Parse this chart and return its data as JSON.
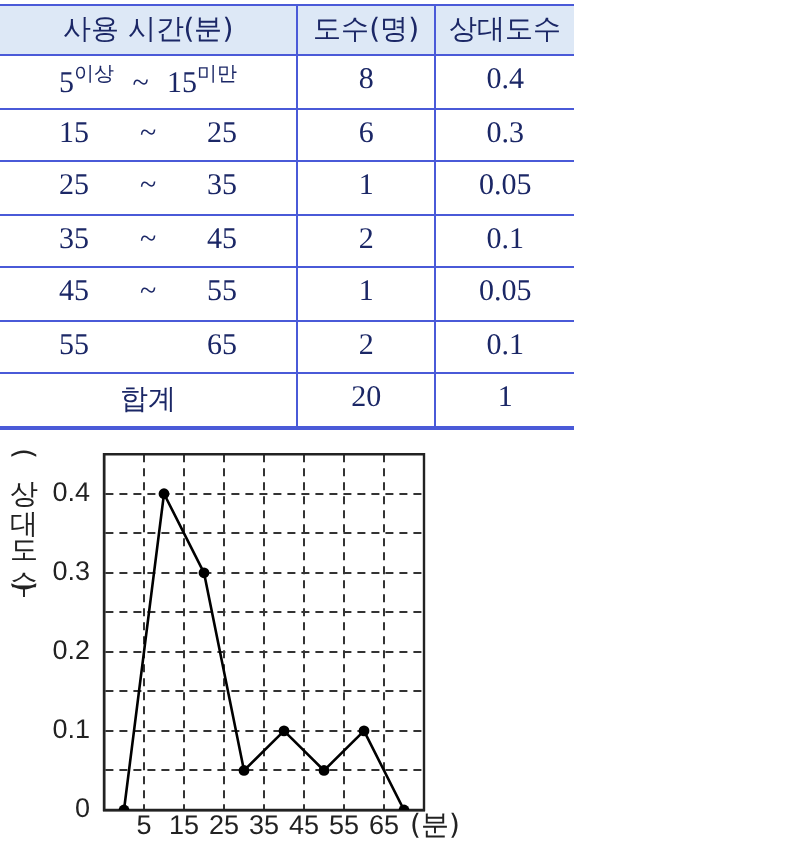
{
  "chart_data": [
    {
      "type": "other",
      "xlabel": "사용 시간(분)",
      "categories": [
        "5$^{이상}$ ~ 15$^{미만}$",
        "15 ~ 25",
        "25 ~ 35",
        "35 ~ 45",
        "45 ~ 55",
        "55 65",
        "합계"
      ],
      "series": [
        {
          "name": "도수(명)",
          "values": [
            8,
            6,
            1,
            2,
            1,
            2,
            20
          ]
        },
        {
          "name": "상대도수",
          "values": [
            0.4,
            0.3,
            0.05,
            0.1,
            0.05,
            0.1,
            1
          ]
        }
      ],
      "data_labels": true
    },
    {
      "type": "line",
      "x": [
        0,
        10,
        20,
        30,
        40,
        50,
        60,
        70
      ],
      "values": [
        0,
        0.4,
        0.3,
        0.05,
        0.1,
        0.05,
        0.1,
        0
      ],
      "color": "#000000",
      "xlim": [
        -5,
        75
      ],
      "xticks": [
        5,
        15,
        25,
        35,
        45,
        55,
        65
      ],
      "ylim": [
        0,
        0.45
      ],
      "yticks": [
        0,
        {
          "value": 0.05,
          "label": null
        },
        0.1,
        {
          "value": 0.15,
          "label": null
        },
        0.2,
        {
          "value": 0.25,
          "label": null
        },
        0.3,
        {
          "value": 0.35,
          "label": null
        },
        0.4
      ],
      "xlabel": "(분)",
      "ylabel": "(상대도수)",
      "grid": true,
      "marker": "circle",
      "line_style": "solid"
    }
  ]
}
